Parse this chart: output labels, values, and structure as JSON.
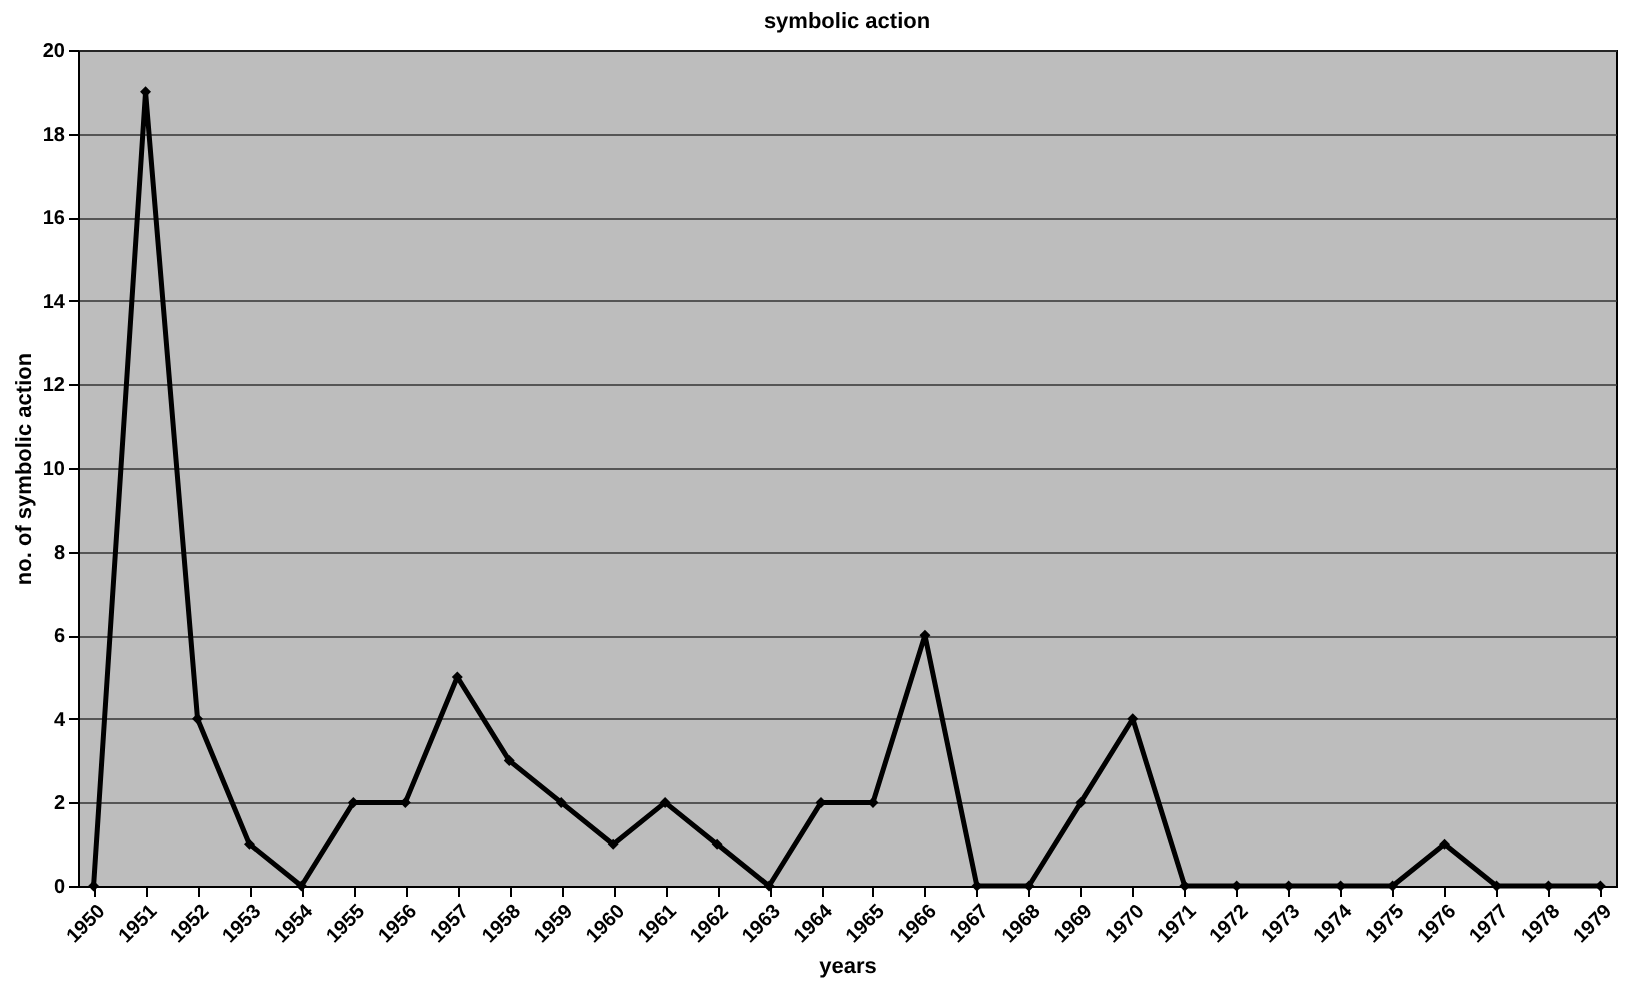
{
  "chart_data": {
    "type": "line",
    "title": "symbolic action",
    "xlabel": "years",
    "ylabel": "no. of symbolic action",
    "categories": [
      "1950",
      "1951",
      "1952",
      "1953",
      "1954",
      "1955",
      "1956",
      "1957",
      "1958",
      "1959",
      "1960",
      "1961",
      "1962",
      "1963",
      "1964",
      "1965",
      "1966",
      "1967",
      "1968",
      "1969",
      "1970",
      "1971",
      "1972",
      "1973",
      "1974",
      "1975",
      "1976",
      "1977",
      "1978",
      "1979"
    ],
    "series": [
      {
        "color": "#000000",
        "values": [
          0,
          19,
          4,
          1,
          0,
          2,
          2,
          5,
          3,
          2,
          1,
          2,
          1,
          0,
          2,
          2,
          6,
          0,
          0,
          2,
          4,
          0,
          0,
          0,
          0,
          0,
          1,
          0,
          0,
          0
        ]
      }
    ],
    "ylim": [
      0,
      20
    ],
    "yticks": [
      0,
      2,
      4,
      6,
      8,
      10,
      12,
      14,
      16,
      18,
      20
    ],
    "grid": "y",
    "marker": "diamond",
    "line_style": "solid"
  }
}
